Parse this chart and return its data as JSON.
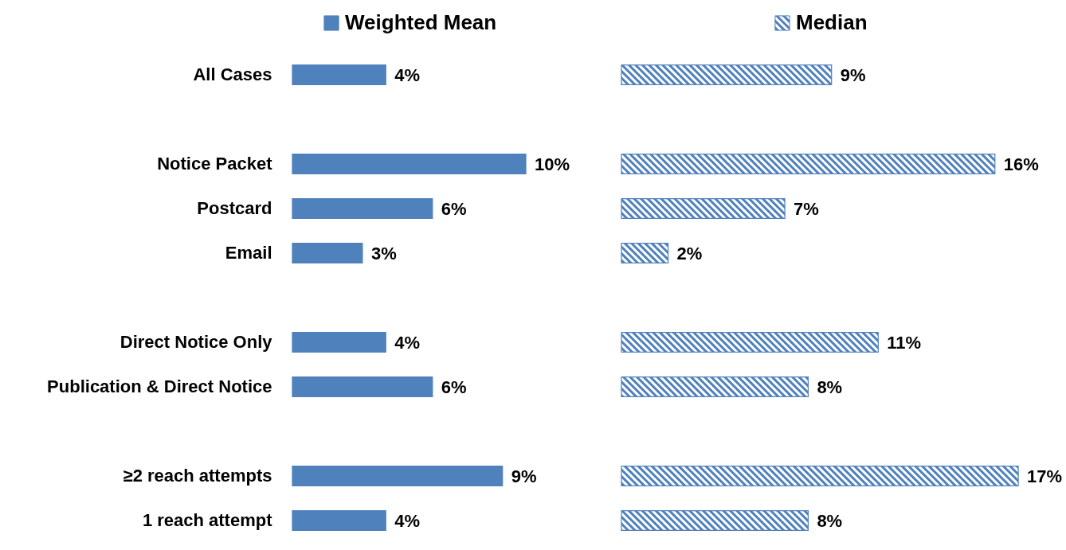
{
  "chart_data": [
    {
      "type": "bar",
      "orientation": "horizontal",
      "categories": [
        "All Cases",
        null,
        "Notice Packet",
        "Postcard",
        "Email",
        null,
        "Direct Notice Only",
        "Publication & Direct Notice",
        null,
        "≥2 reach attempts",
        "1 reach attempt"
      ],
      "series": [
        {
          "name": "Weighted Mean",
          "color": "#4f81bd",
          "values": [
            4,
            null,
            10,
            6,
            3,
            null,
            4,
            6,
            null,
            9,
            4
          ],
          "value_labels": [
            "4%",
            null,
            "10%",
            "6%",
            "3%",
            null,
            "4%",
            "6%",
            null,
            "9%",
            "4%"
          ]
        }
      ],
      "legend": "top",
      "tick_labels": "y"
    },
    {
      "type": "bar",
      "orientation": "horizontal",
      "categories": [
        null,
        null,
        null,
        null,
        null,
        null,
        null,
        null,
        null,
        null,
        null
      ],
      "series": [
        {
          "name": "Median",
          "color": "#4f81bd",
          "values": [
            9,
            null,
            16,
            7,
            2,
            null,
            11,
            8,
            null,
            17,
            8
          ],
          "value_labels": [
            "9%",
            null,
            "16%",
            "7%",
            "2%",
            null,
            "11%",
            "8%",
            null,
            "17%",
            "8%"
          ]
        }
      ],
      "legend": "top"
    }
  ]
}
